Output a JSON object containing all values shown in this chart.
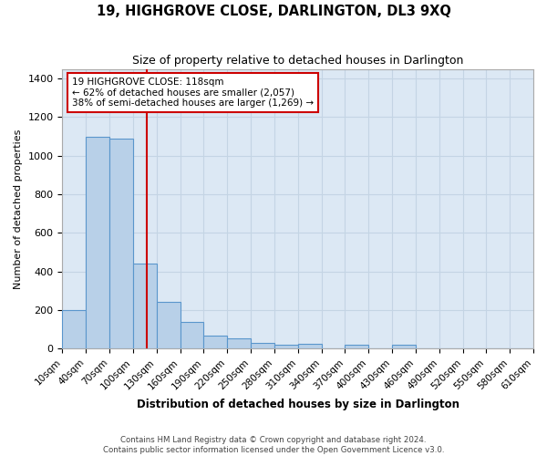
{
  "title": "19, HIGHGROVE CLOSE, DARLINGTON, DL3 9XQ",
  "subtitle": "Size of property relative to detached houses in Darlington",
  "xlabel": "Distribution of detached houses by size in Darlington",
  "ylabel": "Number of detached properties",
  "property_size": 118,
  "annotation_line1": "19 HIGHGROVE CLOSE: 118sqm",
  "annotation_line2": "← 62% of detached houses are smaller (2,057)",
  "annotation_line3": "38% of semi-detached houses are larger (1,269) →",
  "footer_line1": "Contains HM Land Registry data © Crown copyright and database right 2024.",
  "footer_line2": "Contains public sector information licensed under the Open Government Licence v3.0.",
  "bar_color": "#b8d0e8",
  "bar_edge_color": "#5a96cc",
  "grid_color": "#c4d4e4",
  "red_line_color": "#cc0000",
  "annotation_box_edge_color": "#cc0000",
  "background_color": "#dce8f4",
  "bins": [
    10,
    40,
    70,
    100,
    130,
    160,
    190,
    220,
    250,
    280,
    310,
    340,
    370,
    400,
    430,
    460,
    490,
    520,
    550,
    580,
    610
  ],
  "bin_labels": [
    "10sqm",
    "40sqm",
    "70sqm",
    "100sqm",
    "130sqm",
    "160sqm",
    "190sqm",
    "220sqm",
    "250sqm",
    "280sqm",
    "310sqm",
    "340sqm",
    "370sqm",
    "400sqm",
    "430sqm",
    "460sqm",
    "490sqm",
    "520sqm",
    "550sqm",
    "580sqm",
    "610sqm"
  ],
  "values": [
    200,
    1100,
    1090,
    440,
    240,
    140,
    65,
    55,
    30,
    20,
    25,
    0,
    20,
    0,
    20,
    0,
    0,
    0,
    0,
    0
  ],
  "ylim": [
    0,
    1450
  ],
  "yticks": [
    0,
    200,
    400,
    600,
    800,
    1000,
    1200,
    1400
  ],
  "figsize": [
    6.0,
    5.0
  ],
  "dpi": 100
}
